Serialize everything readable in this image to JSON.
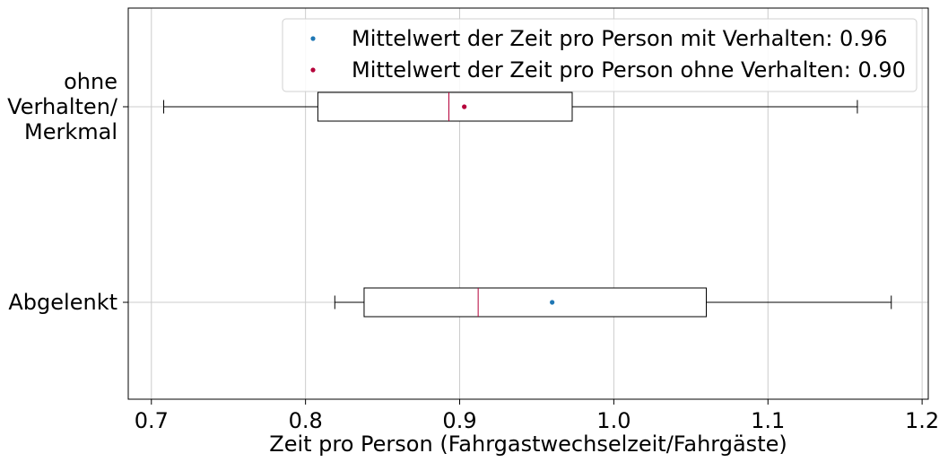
{
  "chart_data": {
    "type": "boxplot",
    "orientation": "horizontal",
    "title": "",
    "xlabel": "Zeit pro Person (Fahrgastwechselzeit/Fahrgäste)",
    "ylabel": "",
    "xlim": [
      0.685,
      1.204
    ],
    "x_ticks": [
      0.7,
      0.8,
      0.9,
      1.0,
      1.1,
      1.2
    ],
    "x_tick_labels": [
      "0.7",
      "0.8",
      "0.9",
      "1.0",
      "1.1",
      "1.2"
    ],
    "grid": true,
    "legend_position": "upper right",
    "boxes": [
      {
        "label_lines": [
          "ohne ",
          "Verhalten/",
          "Merkmal"
        ],
        "whisker_low": 0.708,
        "q1": 0.808,
        "median": 0.893,
        "q3": 0.973,
        "whisker_high": 1.158,
        "mean": 0.903,
        "mean_color": "#b5003a"
      },
      {
        "label_lines": [
          "Abgelenkt"
        ],
        "whisker_low": 0.819,
        "q1": 0.838,
        "median": 0.912,
        "q3": 1.06,
        "whisker_high": 1.18,
        "mean": 0.96,
        "mean_color": "#1f77b4"
      }
    ],
    "legend": [
      {
        "label": "Mittelwert der Zeit pro Person mit Verhalten: 0.96",
        "color": "#1f77b4"
      },
      {
        "label": "Mittelwert der Zeit pro Person ohne Verhalten: 0.90",
        "color": "#b5003a"
      }
    ],
    "colors": {
      "median": "#b5003a",
      "box": "#000000",
      "grid": "#cccccc"
    }
  }
}
